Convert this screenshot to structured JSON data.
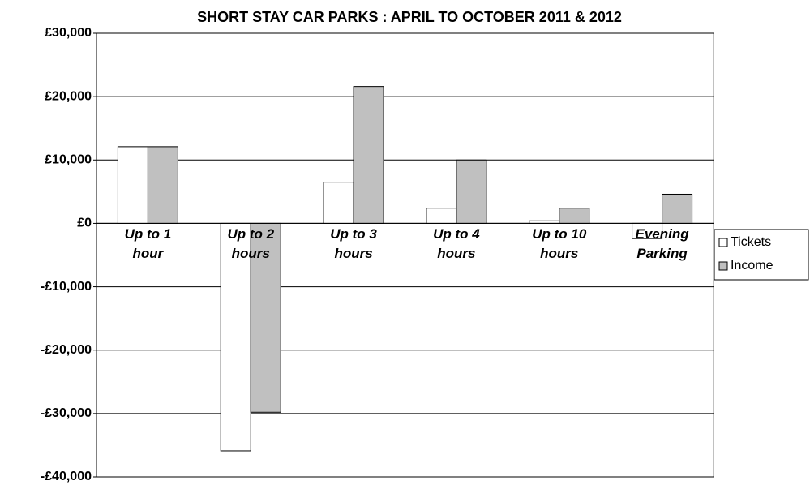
{
  "chart_data": {
    "type": "bar",
    "title": "SHORT STAY CAR PARKS : APRIL TO OCTOBER 2011 & 2012",
    "categories": [
      "Up to 1 hour",
      "Up to 2 hours",
      "Up to 3 hours",
      "Up to 4 hours",
      "Up to 10 hours",
      "Evening Parking"
    ],
    "series": [
      {
        "name": "Tickets",
        "color": "#ffffff",
        "values": [
          12100,
          -35900,
          6500,
          2400,
          400,
          -2400
        ]
      },
      {
        "name": "Income",
        "color": "#c0c0c0",
        "values": [
          12100,
          -29800,
          21600,
          10000,
          2400,
          4600
        ]
      }
    ],
    "ylim": [
      -40000,
      30000
    ],
    "yticks": [
      {
        "value": -40000,
        "label": "-£40,000"
      },
      {
        "value": -30000,
        "label": "-£30,000"
      },
      {
        "value": -20000,
        "label": "-£20,000"
      },
      {
        "value": -10000,
        "label": "-£10,000"
      },
      {
        "value": 0,
        "label": "£0"
      },
      {
        "value": 10000,
        "label": "£10,000"
      },
      {
        "value": 20000,
        "label": "£20,000"
      },
      {
        "value": 30000,
        "label": "£30,000"
      }
    ],
    "grid": true,
    "legend": "right"
  }
}
